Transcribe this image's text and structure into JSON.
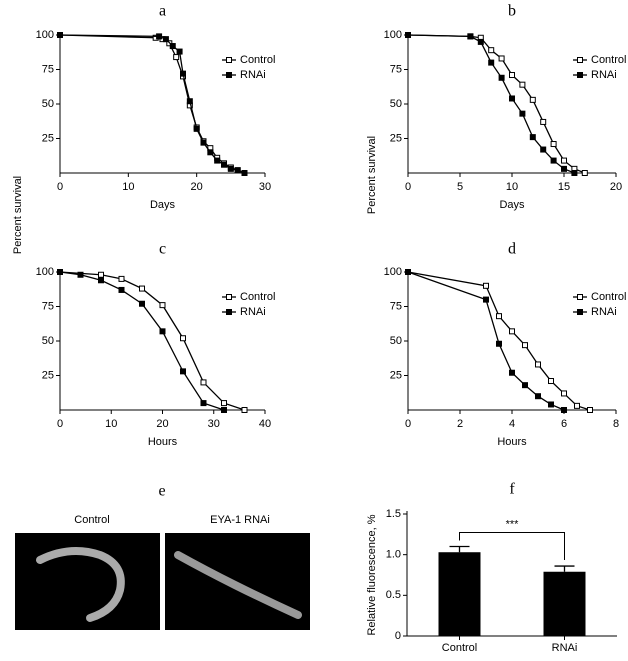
{
  "chart_data": [
    {
      "type": "line",
      "title": "a",
      "xlabel": "Days",
      "ylabel": "Percent survival",
      "xlim": [
        0,
        30
      ],
      "xticks": [
        0,
        10,
        20,
        30
      ],
      "ylim": [
        0,
        100
      ],
      "yticks": [
        25,
        50,
        75,
        100
      ],
      "series": [
        {
          "name": "Control",
          "color": "#000000",
          "marker": "open",
          "x": [
            0,
            14,
            15,
            16,
            17,
            18,
            19,
            20,
            21,
            22,
            23,
            24,
            25,
            26,
            27
          ],
          "values": [
            100,
            98,
            97,
            94,
            84,
            70,
            49,
            33,
            23,
            18,
            11,
            7,
            4,
            2,
            0
          ]
        },
        {
          "name": "RNAi",
          "color": "#000000",
          "marker": "filled",
          "x": [
            0,
            14.5,
            15.5,
            16.5,
            17.5,
            18,
            19,
            20,
            21,
            22,
            23,
            24,
            25,
            26,
            27
          ],
          "values": [
            100,
            99,
            97,
            92,
            88,
            72,
            52,
            32,
            22,
            15,
            9,
            6,
            3,
            2,
            0
          ]
        }
      ]
    },
    {
      "type": "line",
      "title": "b",
      "xlabel": "Days",
      "ylabel": "Percent survival",
      "xlim": [
        0,
        20
      ],
      "xticks": [
        0,
        5,
        10,
        15,
        20
      ],
      "ylim": [
        0,
        100
      ],
      "yticks": [
        25,
        50,
        75,
        100
      ],
      "series": [
        {
          "name": "Control",
          "color": "#000000",
          "marker": "open",
          "x": [
            0,
            6,
            7,
            8,
            9,
            10,
            11,
            12,
            13,
            14,
            15,
            16,
            17
          ],
          "values": [
            100,
            99,
            98,
            89,
            83,
            71,
            64,
            53,
            37,
            21,
            9,
            3,
            0
          ]
        },
        {
          "name": "RNAi",
          "color": "#000000",
          "marker": "filled",
          "x": [
            0,
            6,
            7,
            8,
            9,
            10,
            11,
            12,
            13,
            14,
            15,
            16
          ],
          "values": [
            100,
            99,
            95,
            80,
            69,
            54,
            43,
            26,
            17,
            9,
            3,
            0
          ]
        }
      ]
    },
    {
      "type": "line",
      "title": "c",
      "xlabel": "Hours",
      "xlim": [
        0,
        40
      ],
      "xticks": [
        0,
        10,
        20,
        30,
        40
      ],
      "ylim": [
        0,
        100
      ],
      "yticks": [
        25,
        50,
        75,
        100
      ],
      "series": [
        {
          "name": "Control",
          "color": "#000000",
          "marker": "open",
          "x": [
            0,
            8,
            12,
            16,
            20,
            24,
            28,
            32,
            36
          ],
          "values": [
            100,
            98,
            95,
            88,
            76,
            52,
            20,
            5,
            0
          ]
        },
        {
          "name": "RNAi",
          "color": "#000000",
          "marker": "filled",
          "x": [
            0,
            4,
            8,
            12,
            16,
            20,
            24,
            28,
            32
          ],
          "values": [
            100,
            98,
            94,
            87,
            77,
            57,
            28,
            5,
            0
          ]
        }
      ]
    },
    {
      "type": "line",
      "title": "d",
      "xlabel": "Hours",
      "xlim": [
        0,
        8
      ],
      "xticks": [
        0,
        2,
        4,
        6,
        8
      ],
      "ylim": [
        0,
        100
      ],
      "yticks": [
        25,
        50,
        75,
        100
      ],
      "series": [
        {
          "name": "Control",
          "color": "#000000",
          "marker": "open",
          "x": [
            0,
            3,
            3.5,
            4,
            4.5,
            5,
            5.5,
            6,
            6.5,
            7
          ],
          "values": [
            100,
            90,
            68,
            57,
            47,
            33,
            21,
            12,
            3,
            0
          ]
        },
        {
          "name": "RNAi",
          "color": "#000000",
          "marker": "filled",
          "x": [
            0,
            3,
            3.5,
            4,
            4.5,
            5,
            5.5,
            6
          ],
          "values": [
            100,
            80,
            48,
            27,
            18,
            10,
            4,
            0
          ]
        }
      ]
    },
    {
      "type": "bar",
      "title": "f",
      "ylabel": "Relative fluorescence, %",
      "categories": [
        "Control",
        "RNAi"
      ],
      "values": [
        1.03,
        0.79
      ],
      "errors": [
        0.07,
        0.07
      ],
      "color": "#000000",
      "significance": "***",
      "ylim": [
        0,
        1.5
      ],
      "yticks": [
        0,
        0.5,
        {
          "value": 1.0,
          "label": "1.0"
        },
        1.5
      ]
    }
  ],
  "image_panel": {
    "title": "e",
    "images": [
      {
        "label": "Control"
      },
      {
        "label": "EYA-1 RNAi"
      }
    ]
  }
}
